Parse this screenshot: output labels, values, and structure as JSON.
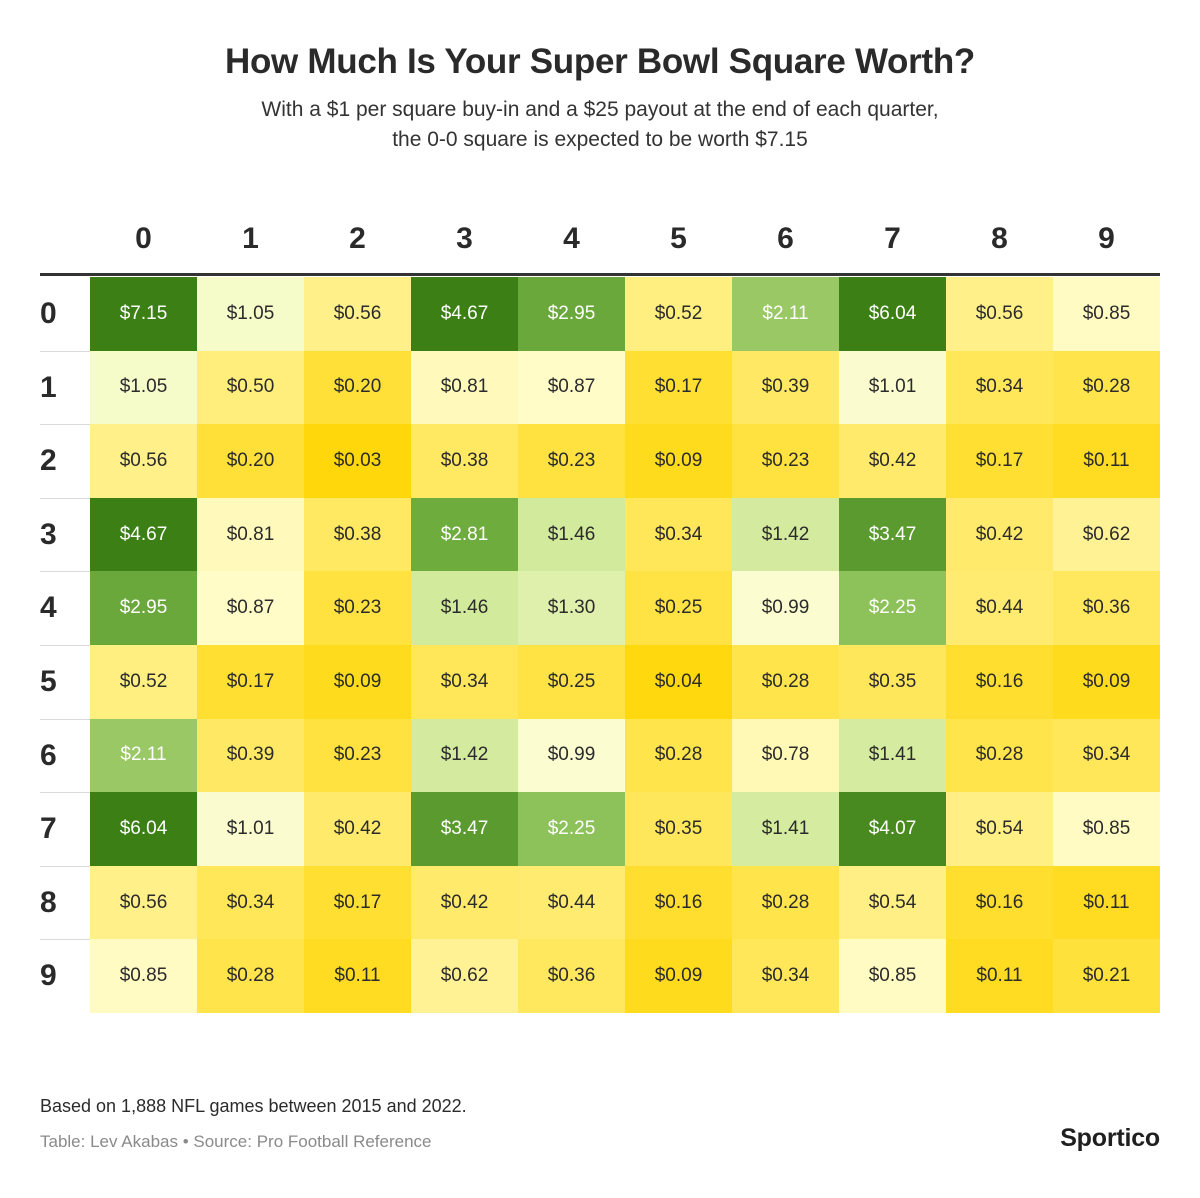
{
  "header": {
    "title": "How Much Is Your Super Bowl Square Worth?",
    "subtitle_line1": "With a $1 per square buy-in and a $25 payout at the end of each quarter,",
    "subtitle_line2": "the 0-0 square is expected to be worth $7.15"
  },
  "footer": {
    "note": "Based on 1,888 NFL games between 2015 and 2022.",
    "credit": "Table: Lev Akabas • Source: Pro Football Reference",
    "brand": "Sportico"
  },
  "chart_data": {
    "type": "heatmap",
    "title": "How Much Is Your Super Bowl Square Worth?",
    "columns": [
      "0",
      "1",
      "2",
      "3",
      "4",
      "5",
      "6",
      "7",
      "8",
      "9"
    ],
    "rows": [
      "0",
      "1",
      "2",
      "3",
      "4",
      "5",
      "6",
      "7",
      "8",
      "9"
    ],
    "unit": "$",
    "values": [
      [
        7.15,
        1.05,
        0.56,
        4.67,
        2.95,
        0.52,
        2.11,
        6.04,
        0.56,
        0.85
      ],
      [
        1.05,
        0.5,
        0.2,
        0.81,
        0.87,
        0.17,
        0.39,
        1.01,
        0.34,
        0.28
      ],
      [
        0.56,
        0.2,
        0.03,
        0.38,
        0.23,
        0.09,
        0.23,
        0.42,
        0.17,
        0.11
      ],
      [
        4.67,
        0.81,
        0.38,
        2.81,
        1.46,
        0.34,
        1.42,
        3.47,
        0.42,
        0.62
      ],
      [
        2.95,
        0.87,
        0.23,
        1.46,
        1.3,
        0.25,
        0.99,
        2.25,
        0.44,
        0.36
      ],
      [
        0.52,
        0.17,
        0.09,
        0.34,
        0.25,
        0.04,
        0.28,
        0.35,
        0.16,
        0.09
      ],
      [
        2.11,
        0.39,
        0.23,
        1.42,
        0.99,
        0.28,
        0.78,
        1.41,
        0.28,
        0.34
      ],
      [
        6.04,
        1.01,
        0.42,
        3.47,
        2.25,
        0.35,
        1.41,
        4.07,
        0.54,
        0.85
      ],
      [
        0.56,
        0.34,
        0.17,
        0.42,
        0.44,
        0.16,
        0.28,
        0.54,
        0.16,
        0.11
      ],
      [
        0.85,
        0.28,
        0.11,
        0.62,
        0.36,
        0.09,
        0.34,
        0.85,
        0.11,
        0.21
      ]
    ],
    "color_scale": {
      "low": "#ffd500",
      "mid": "#ffffd6",
      "high": "#3b7f15"
    }
  }
}
